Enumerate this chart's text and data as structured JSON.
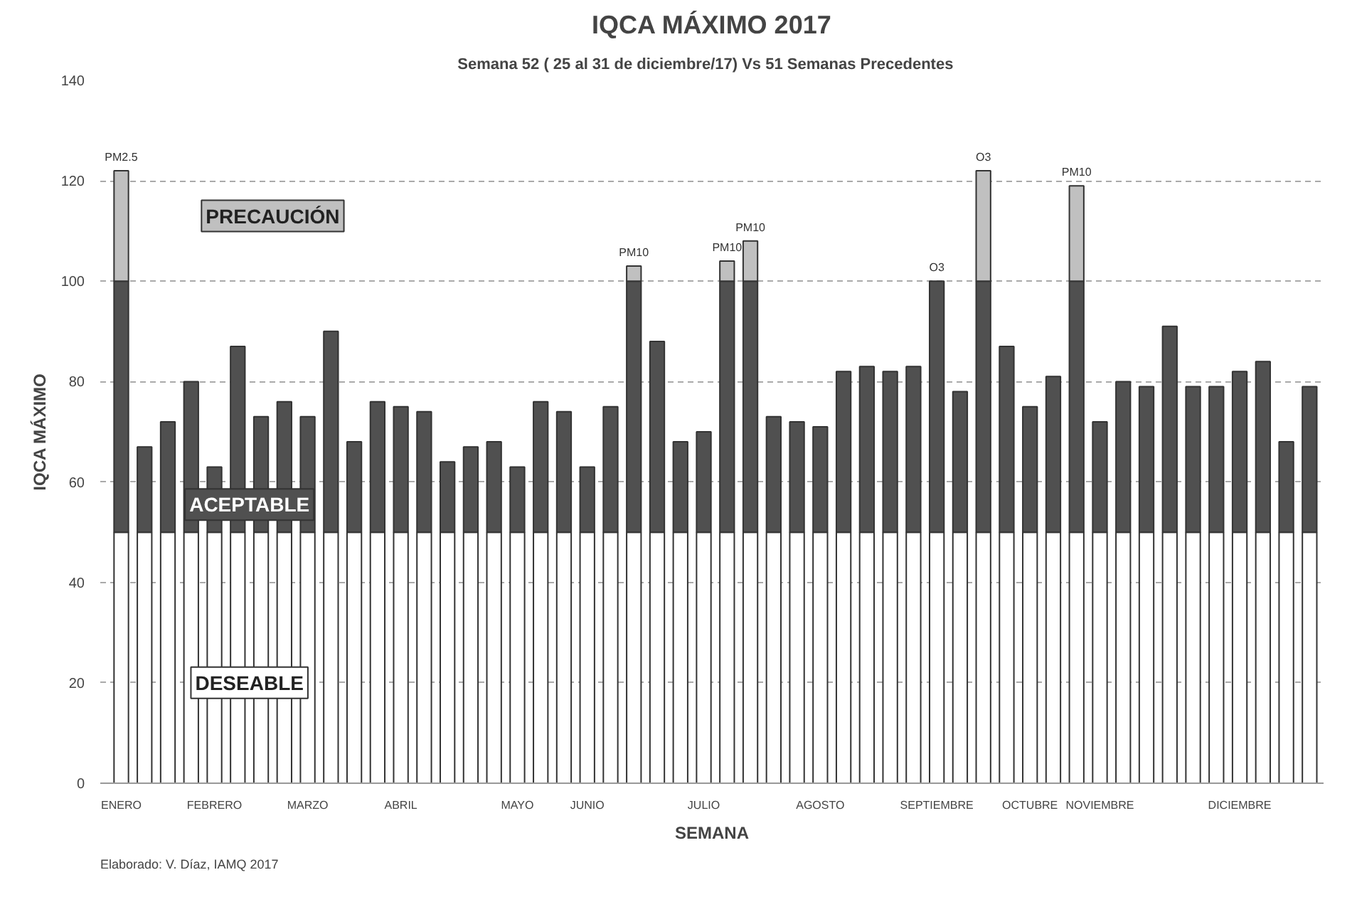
{
  "chart_data": {
    "type": "bar",
    "stacked": true,
    "title": "IQCA MÁXIMO 2017",
    "subtitle": "Semana  52  ( 25 al 31 de diciembre/17) Vs  51 Semanas Precedentes",
    "xlabel": "SEMANA",
    "ylabel": "IQCA MÁXIMO",
    "categories": [
      "ENERO",
      null,
      null,
      null,
      "FEBRERO",
      null,
      null,
      null,
      "MARZO",
      null,
      null,
      null,
      "ABRIL",
      null,
      null,
      null,
      null,
      "MAYO",
      null,
      null,
      "JUNIO",
      null,
      null,
      null,
      null,
      "JULIO",
      null,
      null,
      null,
      null,
      "AGOSTO",
      null,
      null,
      null,
      null,
      "SEPTIEMBRE",
      null,
      null,
      null,
      "OCTUBRE",
      null,
      null,
      "NOVIEMBRE",
      null,
      null,
      null,
      null,
      null,
      "DICIEMBRE",
      null,
      null,
      null
    ],
    "series": [
      {
        "name": "DESEABLE",
        "color": "#ffffff",
        "values": [
          50,
          50,
          50,
          50,
          50,
          50,
          50,
          50,
          50,
          50,
          50,
          50,
          50,
          50,
          50,
          50,
          50,
          50,
          50,
          50,
          50,
          50,
          50,
          50,
          50,
          50,
          50,
          50,
          50,
          50,
          50,
          50,
          50,
          50,
          50,
          50,
          50,
          50,
          50,
          50,
          50,
          50,
          50,
          50,
          50,
          50,
          50,
          50,
          50,
          50,
          50,
          50
        ]
      },
      {
        "name": "ACEPTABLE",
        "color": "#505050",
        "values": [
          50,
          17,
          22,
          30,
          13,
          37,
          23,
          26,
          23,
          40,
          18,
          26,
          25,
          24,
          14,
          17,
          18,
          13,
          26,
          24,
          13,
          25,
          50,
          38,
          18,
          20,
          50,
          50,
          23,
          22,
          21,
          32,
          33,
          32,
          33,
          50,
          28,
          50,
          37,
          25,
          31,
          50,
          22,
          30,
          29,
          41,
          29,
          29,
          32,
          34,
          18,
          29
        ]
      },
      {
        "name": "PRECAUCIÓN",
        "color": "#c0c0c0",
        "values": [
          22,
          null,
          null,
          null,
          null,
          null,
          null,
          null,
          null,
          null,
          null,
          null,
          null,
          null,
          null,
          null,
          null,
          null,
          null,
          null,
          null,
          null,
          3,
          null,
          null,
          null,
          4,
          8,
          null,
          null,
          null,
          null,
          null,
          null,
          null,
          null,
          null,
          22,
          null,
          null,
          null,
          19,
          null,
          null,
          null,
          null,
          null,
          null,
          null,
          null,
          null,
          null
        ],
        "value_labels": [
          "PM2.5",
          null,
          null,
          null,
          null,
          null,
          null,
          null,
          null,
          null,
          null,
          null,
          null,
          null,
          null,
          null,
          null,
          null,
          null,
          null,
          null,
          null,
          "PM10",
          null,
          null,
          null,
          "PM10",
          "PM10",
          null,
          null,
          null,
          null,
          null,
          null,
          null,
          "O3",
          null,
          "O3",
          null,
          null,
          null,
          "PM10",
          null,
          null,
          null,
          null,
          null,
          null,
          null,
          null,
          null,
          null
        ]
      }
    ],
    "ylim": [
      0,
      140
    ],
    "yticks": [
      0,
      20,
      40,
      60,
      80,
      100,
      120,
      140
    ],
    "grid": "y",
    "legend": false,
    "annotations": [
      "Elaborado: V. Díaz, IAMQ 2017"
    ]
  }
}
